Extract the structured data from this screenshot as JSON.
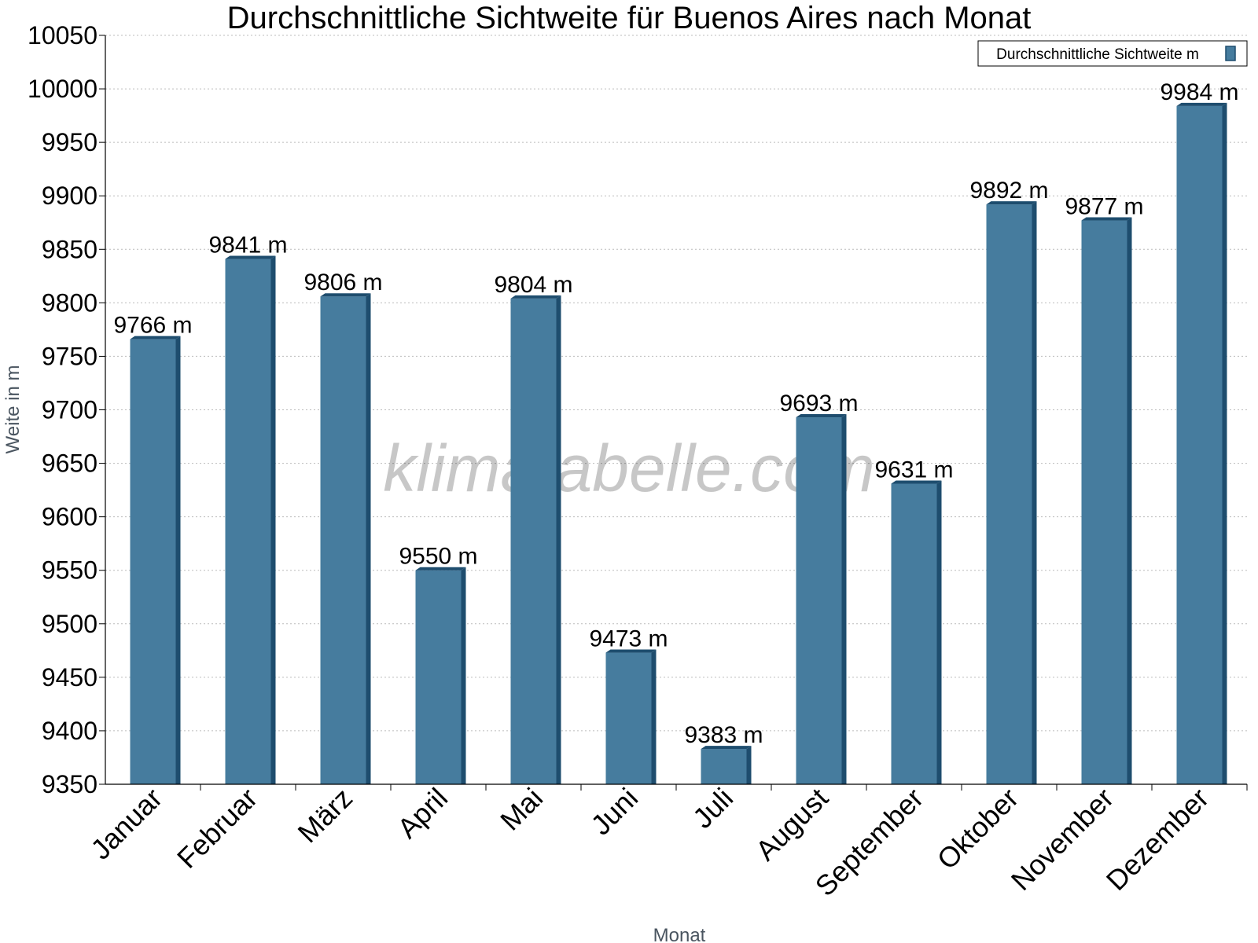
{
  "chart_data": {
    "type": "bar",
    "title": "Durchschnittliche Sichtweite für Buenos Aires nach Monat",
    "xlabel": "Monat",
    "ylabel": "Weite in m",
    "categories": [
      "Januar",
      "Februar",
      "März",
      "April",
      "Mai",
      "Juni",
      "Juli",
      "August",
      "September",
      "Oktober",
      "November",
      "Dezember"
    ],
    "series": [
      {
        "name": "Durchschnittliche Sichtweite m",
        "values": [
          9766,
          9841,
          9806,
          9550,
          9804,
          9473,
          9383,
          9693,
          9631,
          9892,
          9877,
          9984
        ],
        "labels": [
          "9766 m",
          "9841 m",
          "9806 m",
          "9550 m",
          "9804 m",
          "9473 m",
          "9383 m",
          "9693 m",
          "9631 m",
          "9892 m",
          "9877 m",
          "9984 m"
        ]
      }
    ],
    "ylim": [
      9350,
      10050
    ],
    "yticks": [
      9350,
      9400,
      9450,
      9500,
      9550,
      9600,
      9650,
      9700,
      9750,
      9800,
      9850,
      9900,
      9950,
      10000,
      10050
    ],
    "grid": true,
    "legend_position": "top-right",
    "colors": {
      "bar": "#467c9e",
      "bar_side": "#1e4d6e",
      "bar_top": "#1e4d6e"
    }
  },
  "watermark": "klimatabelle.com"
}
